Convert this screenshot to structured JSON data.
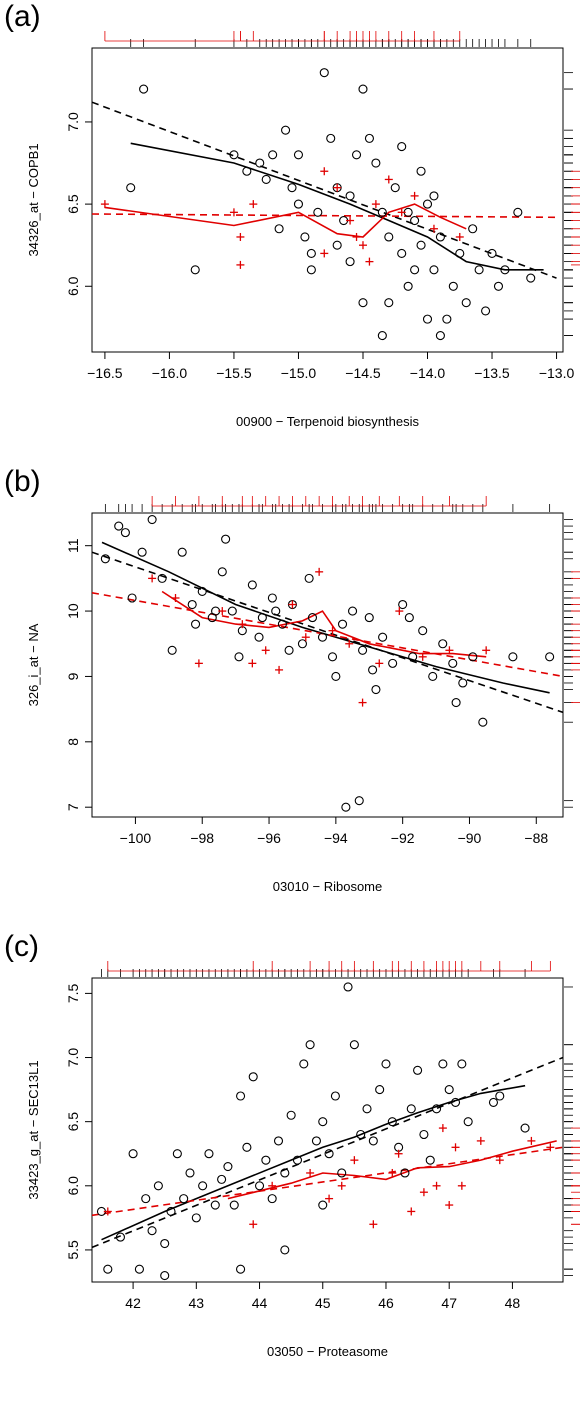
{
  "chart_data": [
    {
      "panel": "(a)",
      "type": "scatter",
      "xlabel": "00900 − Terpenoid biosynthesis",
      "ylabel": "34326_at − COPB1",
      "xticks": [
        "−16.5",
        "−16.0",
        "−15.5",
        "−15.0",
        "−14.5",
        "−14.0",
        "−13.5",
        "−13.0"
      ],
      "xtick_values": [
        -16.5,
        -16.0,
        -15.5,
        -15.0,
        -14.5,
        -14.0,
        -13.5,
        -13.0
      ],
      "yticks": [
        "6.0",
        "6.5",
        "7.0"
      ],
      "ytick_values": [
        6.0,
        6.5,
        7.0
      ],
      "xlim": [
        -16.6,
        -12.95
      ],
      "ylim": [
        5.6,
        7.45
      ],
      "black_points": [
        [
          -16.3,
          6.6
        ],
        [
          -16.2,
          7.2
        ],
        [
          -15.8,
          6.1
        ],
        [
          -15.5,
          6.8
        ],
        [
          -15.4,
          6.7
        ],
        [
          -15.3,
          6.75
        ],
        [
          -15.25,
          6.65
        ],
        [
          -15.2,
          6.8
        ],
        [
          -15.15,
          6.35
        ],
        [
          -15.1,
          6.95
        ],
        [
          -15.05,
          6.6
        ],
        [
          -15.0,
          6.8
        ],
        [
          -15.0,
          6.5
        ],
        [
          -14.95,
          6.3
        ],
        [
          -14.9,
          6.1
        ],
        [
          -14.85,
          6.45
        ],
        [
          -14.8,
          7.3
        ],
        [
          -14.75,
          6.9
        ],
        [
          -14.7,
          6.6
        ],
        [
          -14.65,
          6.4
        ],
        [
          -14.6,
          6.55
        ],
        [
          -14.55,
          6.8
        ],
        [
          -14.5,
          7.2
        ],
        [
          -14.45,
          6.9
        ],
        [
          -14.4,
          6.75
        ],
        [
          -14.35,
          6.45
        ],
        [
          -14.3,
          6.3
        ],
        [
          -14.25,
          6.6
        ],
        [
          -14.2,
          6.2
        ],
        [
          -14.15,
          6.0
        ],
        [
          -14.1,
          6.4
        ],
        [
          -14.05,
          6.7
        ],
        [
          -14.0,
          6.5
        ],
        [
          -13.95,
          6.1
        ],
        [
          -13.9,
          6.3
        ],
        [
          -13.85,
          5.8
        ],
        [
          -13.8,
          6.0
        ],
        [
          -13.75,
          6.2
        ],
        [
          -13.7,
          5.9
        ],
        [
          -13.65,
          6.35
        ],
        [
          -13.6,
          6.1
        ],
        [
          -13.55,
          5.85
        ],
        [
          -13.5,
          6.2
        ],
        [
          -13.45,
          6.0
        ],
        [
          -13.4,
          6.1
        ],
        [
          -13.3,
          6.45
        ],
        [
          -13.2,
          6.05
        ],
        [
          -14.9,
          6.2
        ],
        [
          -14.6,
          6.15
        ],
        [
          -14.3,
          5.9
        ],
        [
          -14.0,
          5.8
        ],
        [
          -13.9,
          5.7
        ],
        [
          -14.2,
          6.85
        ],
        [
          -14.1,
          6.1
        ],
        [
          -14.5,
          5.9
        ],
        [
          -14.7,
          6.25
        ],
        [
          -14.35,
          5.7
        ],
        [
          -14.15,
          6.45
        ],
        [
          -13.95,
          6.55
        ],
        [
          -14.05,
          6.25
        ]
      ],
      "red_points": [
        [
          -16.5,
          6.5
        ],
        [
          -15.5,
          6.45
        ],
        [
          -15.45,
          6.3
        ],
        [
          -15.35,
          6.5
        ],
        [
          -15.45,
          6.13
        ],
        [
          -14.8,
          6.7
        ],
        [
          -14.7,
          6.6
        ],
        [
          -14.6,
          6.4
        ],
        [
          -14.55,
          6.3
        ],
        [
          -14.45,
          6.15
        ],
        [
          -14.4,
          6.5
        ],
        [
          -14.3,
          6.65
        ],
        [
          -14.2,
          6.45
        ],
        [
          -14.1,
          6.55
        ],
        [
          -13.95,
          6.35
        ],
        [
          -13.75,
          6.3
        ],
        [
          -14.8,
          6.2
        ],
        [
          -14.5,
          6.25
        ]
      ],
      "series": [
        {
          "name": "",
          "color": "#000000",
          "dash": true,
          "x": [
            -16.6,
            -13.0
          ],
          "y": [
            7.12,
            6.05
          ]
        },
        {
          "name": "",
          "color": "#000000",
          "dash": false,
          "x": [
            -16.3,
            -15.5,
            -15.0,
            -14.6,
            -14.3,
            -14.0,
            -13.7,
            -13.4,
            -13.1
          ],
          "y": [
            6.87,
            6.75,
            6.62,
            6.5,
            6.4,
            6.3,
            6.15,
            6.1,
            6.1
          ]
        },
        {
          "name": "",
          "color": "#e00000",
          "dash": true,
          "x": [
            -16.6,
            -13.0
          ],
          "y": [
            6.44,
            6.42
          ]
        },
        {
          "name": "",
          "color": "#e00000",
          "dash": false,
          "x": [
            -16.5,
            -15.5,
            -15.0,
            -14.7,
            -14.5,
            -14.3,
            -14.1,
            -13.9,
            -13.7
          ],
          "y": [
            6.48,
            6.37,
            6.45,
            6.32,
            6.3,
            6.45,
            6.5,
            6.42,
            6.35
          ]
        }
      ]
    },
    {
      "panel": "(b)",
      "type": "scatter",
      "xlabel": "03010 − Ribosome",
      "ylabel": "326_i_at − NA",
      "xticks": [
        "−100",
        "−98",
        "−96",
        "−94",
        "−92",
        "−90",
        "−88"
      ],
      "xtick_values": [
        -100,
        -98,
        -96,
        -94,
        -92,
        -90,
        -88
      ],
      "yticks": [
        "7",
        "8",
        "9",
        "10",
        "11"
      ],
      "ytick_values": [
        7,
        8,
        9,
        10,
        11
      ],
      "xlim": [
        -101.3,
        -87.2
      ],
      "ylim": [
        6.85,
        11.5
      ],
      "black_points": [
        [
          -100.9,
          10.8
        ],
        [
          -100.5,
          11.3
        ],
        [
          -100.3,
          11.2
        ],
        [
          -100.1,
          10.2
        ],
        [
          -99.8,
          10.9
        ],
        [
          -99.5,
          11.4
        ],
        [
          -99.2,
          10.5
        ],
        [
          -98.9,
          9.4
        ],
        [
          -98.6,
          10.9
        ],
        [
          -98.3,
          10.1
        ],
        [
          -98.0,
          10.3
        ],
        [
          -97.7,
          9.9
        ],
        [
          -97.4,
          10.6
        ],
        [
          -97.1,
          10.0
        ],
        [
          -96.8,
          9.7
        ],
        [
          -96.5,
          10.4
        ],
        [
          -96.2,
          9.9
        ],
        [
          -95.9,
          10.2
        ],
        [
          -95.6,
          9.8
        ],
        [
          -95.3,
          10.1
        ],
        [
          -95.0,
          9.5
        ],
        [
          -94.7,
          9.9
        ],
        [
          -94.4,
          9.6
        ],
        [
          -94.1,
          9.3
        ],
        [
          -93.8,
          9.8
        ],
        [
          -93.5,
          10.0
        ],
        [
          -93.2,
          9.4
        ],
        [
          -92.9,
          9.1
        ],
        [
          -92.6,
          9.6
        ],
        [
          -92.3,
          9.2
        ],
        [
          -92.0,
          10.1
        ],
        [
          -91.7,
          9.3
        ],
        [
          -91.4,
          9.7
        ],
        [
          -91.1,
          9.0
        ],
        [
          -90.8,
          9.5
        ],
        [
          -90.5,
          9.2
        ],
        [
          -90.2,
          8.9
        ],
        [
          -89.9,
          9.3
        ],
        [
          -89.6,
          8.3
        ],
        [
          -88.7,
          9.3
        ],
        [
          -87.6,
          9.3
        ],
        [
          -93.7,
          7.0
        ],
        [
          -93.3,
          7.1
        ],
        [
          -95.4,
          9.4
        ],
        [
          -94.8,
          10.5
        ],
        [
          -96.9,
          9.3
        ],
        [
          -97.6,
          10.0
        ],
        [
          -92.8,
          8.8
        ],
        [
          -91.8,
          9.9
        ],
        [
          -90.4,
          8.6
        ],
        [
          -94.0,
          9.0
        ],
        [
          -93.0,
          9.9
        ],
        [
          -95.8,
          10.0
        ],
        [
          -96.3,
          9.6
        ],
        [
          -97.3,
          11.1
        ],
        [
          -98.2,
          9.8
        ]
      ],
      "red_points": [
        [
          -99.5,
          10.5
        ],
        [
          -98.8,
          10.2
        ],
        [
          -98.1,
          9.2
        ],
        [
          -97.4,
          10.0
        ],
        [
          -96.8,
          9.8
        ],
        [
          -96.5,
          9.2
        ],
        [
          -96.1,
          9.4
        ],
        [
          -95.7,
          9.1
        ],
        [
          -95.3,
          10.1
        ],
        [
          -94.9,
          9.6
        ],
        [
          -94.5,
          10.6
        ],
        [
          -94.1,
          9.7
        ],
        [
          -93.6,
          9.5
        ],
        [
          -93.2,
          8.6
        ],
        [
          -92.7,
          9.2
        ],
        [
          -92.1,
          10.0
        ],
        [
          -91.4,
          9.3
        ],
        [
          -90.6,
          9.4
        ],
        [
          -89.5,
          9.4
        ]
      ],
      "series": [
        {
          "name": "",
          "color": "#000000",
          "dash": true,
          "x": [
            -101.3,
            -87.2
          ],
          "y": [
            10.9,
            8.45
          ]
        },
        {
          "name": "",
          "color": "#000000",
          "dash": false,
          "x": [
            -101.0,
            -99.0,
            -97.0,
            -95.0,
            -93.0,
            -91.0,
            -89.0,
            -87.6
          ],
          "y": [
            11.05,
            10.6,
            10.1,
            9.75,
            9.45,
            9.15,
            8.9,
            8.75
          ]
        },
        {
          "name": "",
          "color": "#e00000",
          "dash": true,
          "x": [
            -101.3,
            -87.2
          ],
          "y": [
            10.28,
            9.0
          ]
        },
        {
          "name": "",
          "color": "#e00000",
          "dash": false,
          "x": [
            -99.2,
            -98.0,
            -97.0,
            -96.0,
            -95.0,
            -94.4,
            -94.0,
            -93.0,
            -92.0,
            -91.5,
            -90.5,
            -89.5
          ],
          "y": [
            10.3,
            9.9,
            9.8,
            9.75,
            9.85,
            10.0,
            9.7,
            9.5,
            9.4,
            9.35,
            9.35,
            9.3
          ]
        }
      ]
    },
    {
      "panel": "(c)",
      "type": "scatter",
      "xlabel": "03050 − Proteasome",
      "ylabel": "33423_g_at − SEC13L1",
      "xticks": [
        "42",
        "43",
        "44",
        "45",
        "46",
        "47",
        "48"
      ],
      "xtick_values": [
        42,
        43,
        44,
        45,
        46,
        47,
        48
      ],
      "yticks": [
        "5.5",
        "6.0",
        "6.5",
        "7.0",
        "7.5"
      ],
      "ytick_values": [
        5.5,
        6.0,
        6.5,
        7.0,
        7.5
      ],
      "xlim": [
        41.35,
        48.8
      ],
      "ylim": [
        5.25,
        7.62
      ],
      "black_points": [
        [
          41.5,
          5.8
        ],
        [
          41.6,
          5.35
        ],
        [
          41.8,
          5.6
        ],
        [
          42.0,
          6.25
        ],
        [
          42.1,
          5.35
        ],
        [
          42.2,
          5.9
        ],
        [
          42.3,
          5.65
        ],
        [
          42.4,
          6.0
        ],
        [
          42.5,
          5.55
        ],
        [
          42.6,
          5.8
        ],
        [
          42.7,
          6.25
        ],
        [
          42.8,
          5.9
        ],
        [
          42.9,
          6.1
        ],
        [
          43.0,
          5.75
        ],
        [
          43.1,
          6.0
        ],
        [
          43.2,
          6.25
        ],
        [
          43.3,
          5.85
        ],
        [
          43.4,
          6.05
        ],
        [
          43.5,
          6.15
        ],
        [
          43.6,
          5.85
        ],
        [
          43.7,
          6.7
        ],
        [
          43.8,
          6.3
        ],
        [
          43.9,
          6.85
        ],
        [
          44.0,
          6.0
        ],
        [
          44.1,
          6.2
        ],
        [
          44.2,
          5.9
        ],
        [
          44.3,
          6.35
        ],
        [
          44.4,
          6.1
        ],
        [
          44.5,
          6.55
        ],
        [
          44.6,
          6.2
        ],
        [
          44.7,
          6.95
        ],
        [
          44.8,
          7.1
        ],
        [
          44.9,
          6.35
        ],
        [
          45.0,
          6.5
        ],
        [
          45.1,
          6.25
        ],
        [
          45.2,
          6.7
        ],
        [
          45.3,
          6.1
        ],
        [
          45.4,
          7.55
        ],
        [
          45.5,
          7.1
        ],
        [
          45.6,
          6.4
        ],
        [
          45.7,
          6.6
        ],
        [
          45.8,
          6.35
        ],
        [
          45.9,
          6.75
        ],
        [
          46.0,
          6.95
        ],
        [
          46.1,
          6.5
        ],
        [
          46.2,
          6.3
        ],
        [
          46.3,
          6.1
        ],
        [
          46.4,
          6.6
        ],
        [
          46.5,
          6.9
        ],
        [
          46.6,
          6.4
        ],
        [
          46.7,
          6.2
        ],
        [
          46.8,
          6.6
        ],
        [
          46.9,
          6.95
        ],
        [
          47.0,
          6.75
        ],
        [
          47.1,
          6.65
        ],
        [
          47.2,
          6.95
        ],
        [
          47.3,
          6.5
        ],
        [
          47.7,
          6.65
        ],
        [
          47.8,
          6.7
        ],
        [
          48.2,
          6.45
        ],
        [
          43.7,
          5.35
        ],
        [
          44.4,
          5.5
        ],
        [
          45.0,
          5.85
        ],
        [
          42.5,
          5.3
        ]
      ],
      "red_points": [
        [
          41.6,
          5.8
        ],
        [
          43.9,
          5.7
        ],
        [
          44.2,
          6.0
        ],
        [
          44.8,
          6.1
        ],
        [
          45.1,
          5.9
        ],
        [
          45.3,
          6.0
        ],
        [
          45.5,
          6.2
        ],
        [
          45.8,
          5.7
        ],
        [
          46.1,
          6.1
        ],
        [
          46.2,
          6.25
        ],
        [
          46.4,
          5.8
        ],
        [
          46.6,
          5.95
        ],
        [
          46.8,
          6.0
        ],
        [
          46.9,
          6.45
        ],
        [
          47.0,
          5.85
        ],
        [
          47.1,
          6.3
        ],
        [
          47.2,
          6.0
        ],
        [
          47.5,
          6.35
        ],
        [
          47.8,
          6.2
        ],
        [
          48.3,
          6.35
        ],
        [
          48.6,
          6.3
        ]
      ],
      "series": [
        {
          "name": "",
          "color": "#000000",
          "dash": true,
          "x": [
            41.35,
            48.8
          ],
          "y": [
            5.52,
            7.0
          ]
        },
        {
          "name": "",
          "color": "#000000",
          "dash": false,
          "x": [
            41.5,
            42.5,
            43.5,
            44.5,
            45.0,
            45.5,
            46.0,
            46.5,
            47.0,
            47.5,
            48.2
          ],
          "y": [
            5.58,
            5.8,
            6.0,
            6.2,
            6.3,
            6.38,
            6.48,
            6.57,
            6.65,
            6.72,
            6.78
          ]
        },
        {
          "name": "",
          "color": "#e00000",
          "dash": true,
          "x": [
            41.35,
            48.8
          ],
          "y": [
            5.77,
            6.3
          ]
        },
        {
          "name": "",
          "color": "#e00000",
          "dash": false,
          "x": [
            43.5,
            44.5,
            45.0,
            45.5,
            46.0,
            46.5,
            47.0,
            47.5,
            48.0,
            48.7
          ],
          "y": [
            5.9,
            6.02,
            6.1,
            6.08,
            6.05,
            6.14,
            6.15,
            6.2,
            6.27,
            6.35
          ]
        }
      ]
    }
  ]
}
